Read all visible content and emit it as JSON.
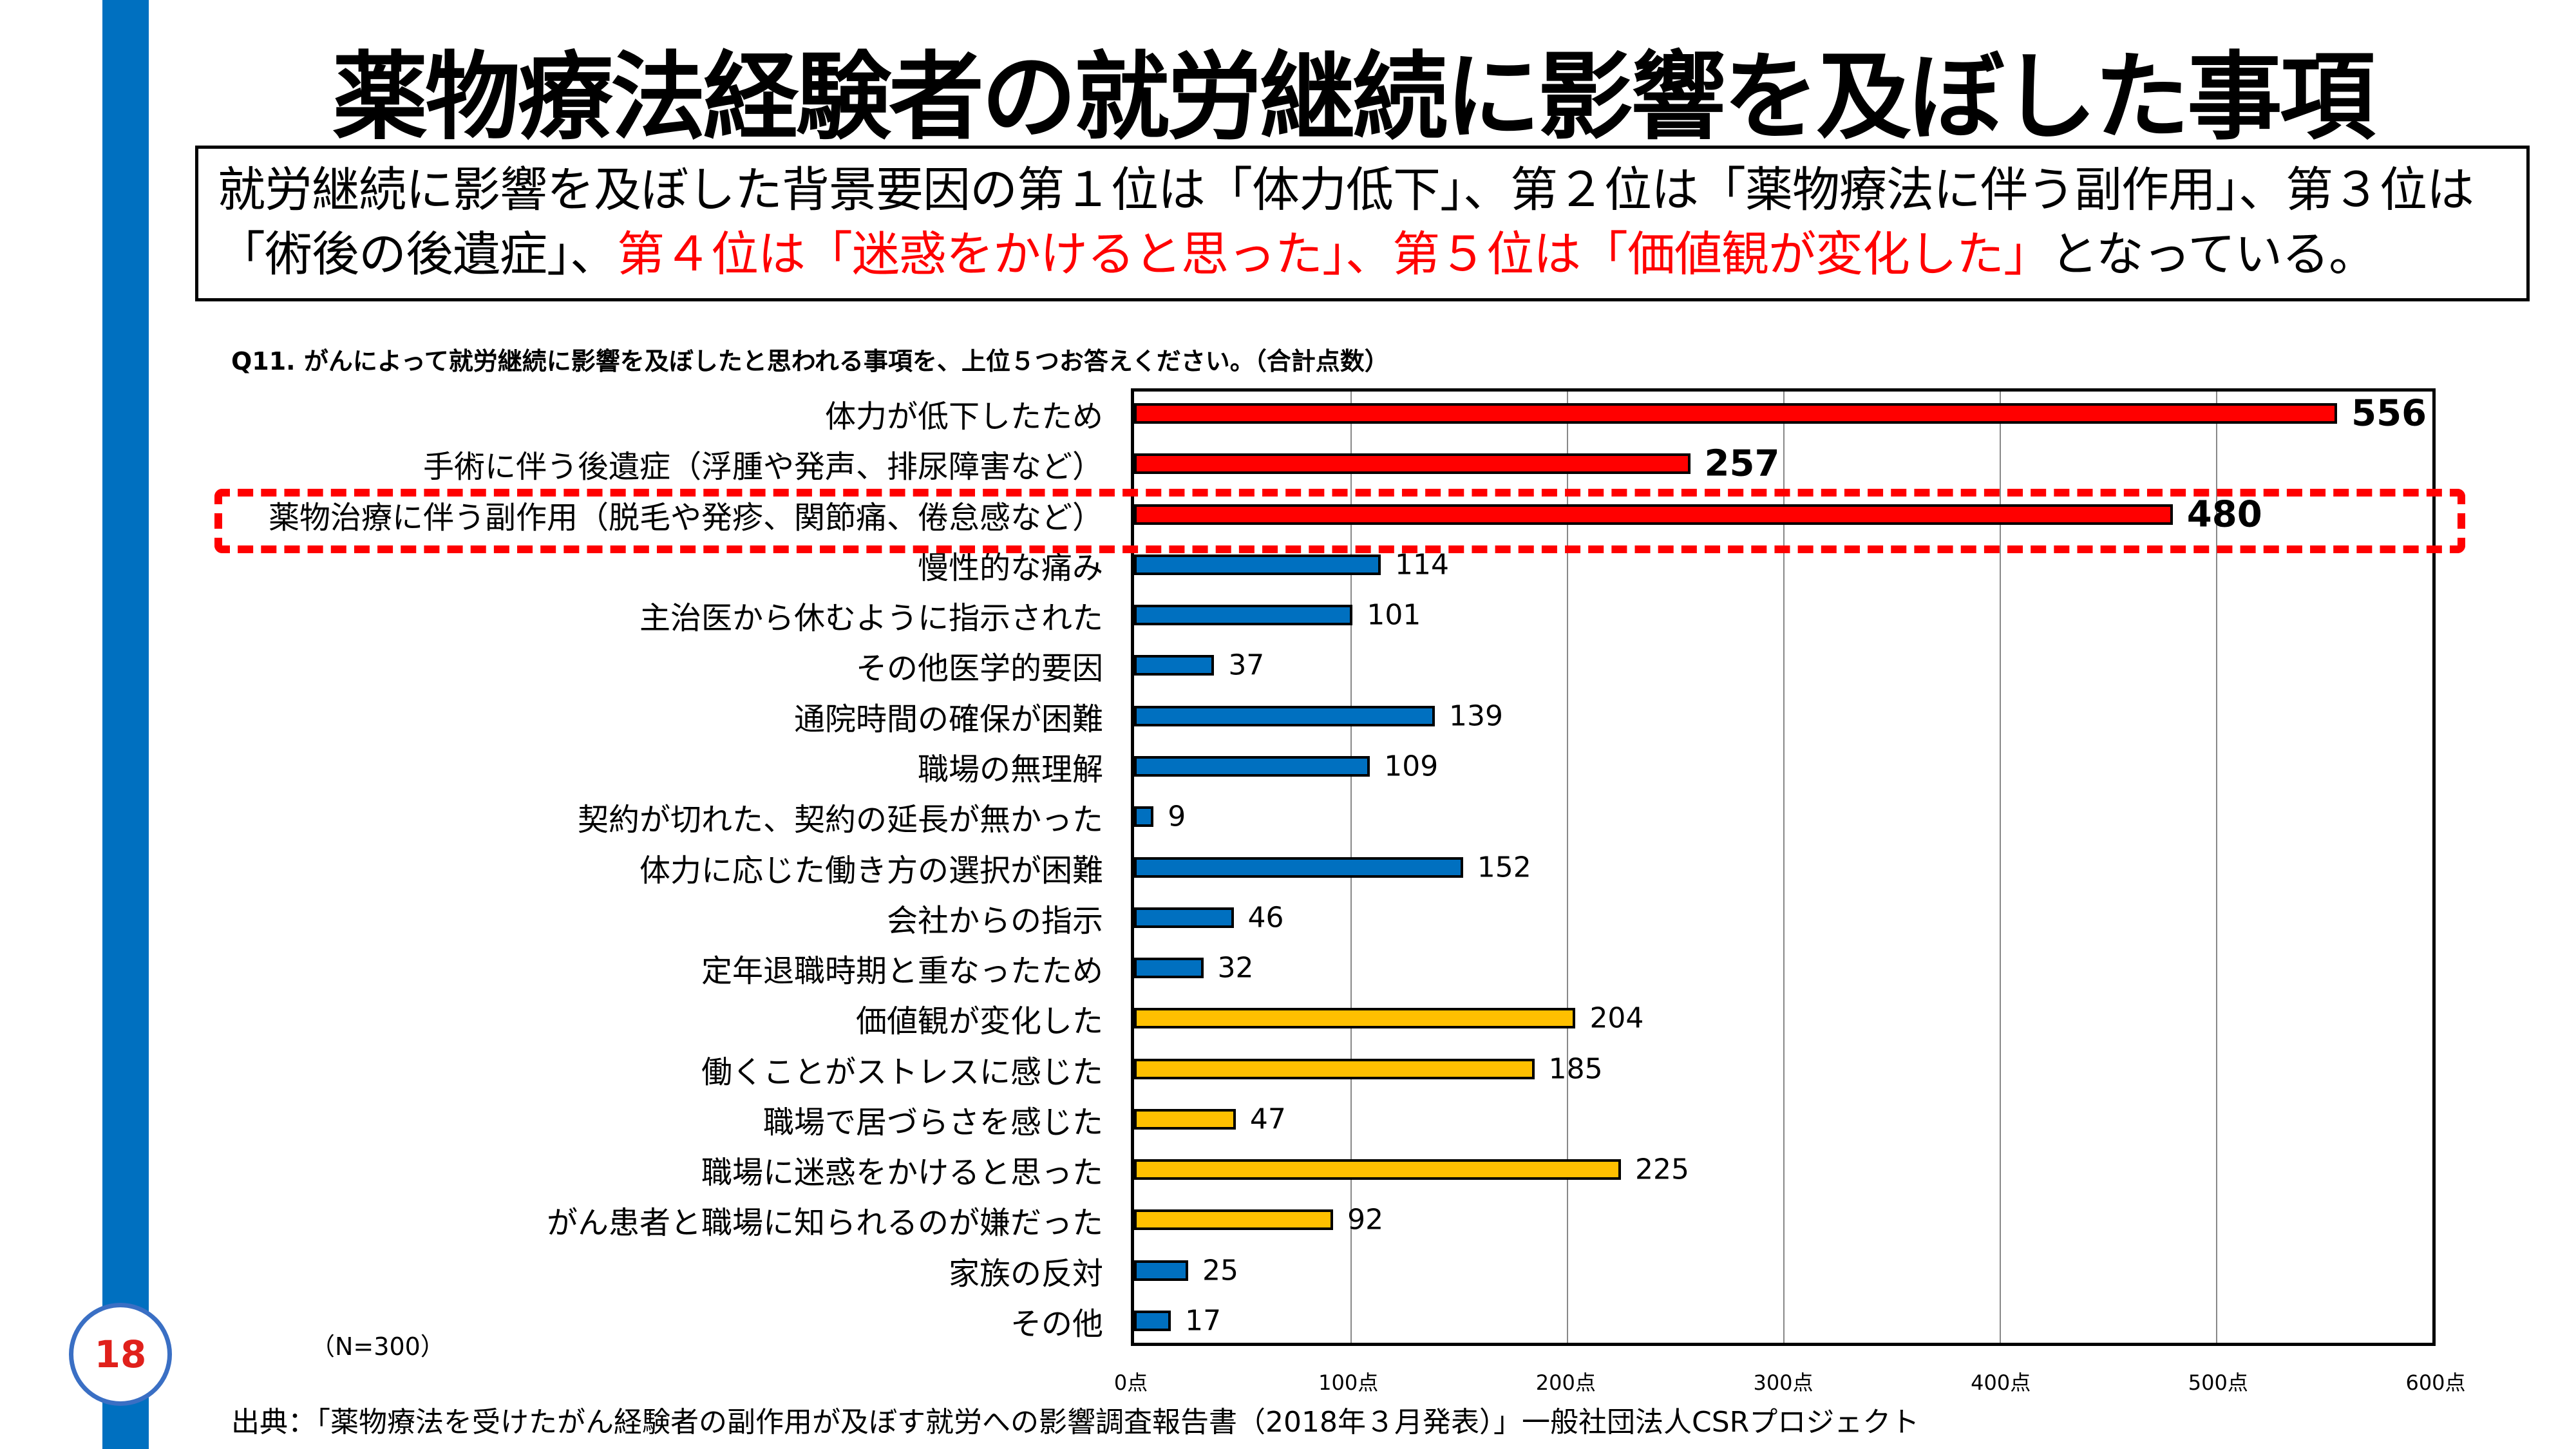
{
  "page_number": "18",
  "title": "薬物療法経験者の就労継続に影響を及ぼした事項",
  "summary": {
    "part1": "就労継続に影響を及ぼした背景要因の第１位は「体力低下」、第２位は「薬物療法に伴う副作用」、第３位は「術後の後遺症」、",
    "part2_red": "第４位は「迷惑をかけると思った」、第５位は「価値観が変化した」",
    "part3": "となっている。"
  },
  "colors": {
    "red": "#ff0000",
    "blue": "#0070c0",
    "yellow": "#ffc000",
    "sidebar": "#0070c0"
  },
  "chart_data": {
    "type": "bar",
    "orientation": "horizontal",
    "title": "Q11. がんによって就労継続に影響を及ぼしたと思われる事項を、上位５つお答えください。（合計点数）",
    "categories": [
      "体力が低下したため",
      "手術に伴う後遺症（浮腫や発声、排尿障害など）",
      "薬物治療に伴う副作用（脱毛や発疹、関節痛、倦怠感など）",
      "慢性的な痛み",
      "主治医から休むように指示された",
      "その他医学的要因",
      "通院時間の確保が困難",
      "職場の無理解",
      "契約が切れた、契約の延長が無かった",
      "体力に応じた働き方の選択が困難",
      "会社からの指示",
      "定年退職時期と重なったため",
      "価値観が変化した",
      "働くことがストレスに感じた",
      "職場で居づらさを感じた",
      "職場に迷惑をかけると思った",
      "がん患者と職場に知られるのが嫌だった",
      "家族の反対",
      "その他"
    ],
    "values": [
      556,
      257,
      480,
      114,
      101,
      37,
      139,
      109,
      9,
      152,
      46,
      32,
      204,
      185,
      47,
      225,
      92,
      25,
      17
    ],
    "bar_colors": [
      "red",
      "red",
      "red",
      "blue",
      "blue",
      "blue",
      "blue",
      "blue",
      "blue",
      "blue",
      "blue",
      "blue",
      "yellow",
      "yellow",
      "yellow",
      "yellow",
      "yellow",
      "blue",
      "blue"
    ],
    "highlighted_category": "薬物治療に伴う副作用（脱毛や発疹、関節痛、倦怠感など）",
    "xlim": [
      0,
      600
    ],
    "xticks": [
      "0点",
      "100点",
      "200点",
      "300点",
      "400点",
      "500点",
      "600点"
    ],
    "grid": true,
    "note": "（N=300）"
  },
  "source": "出典：「薬物療法を受けたがん経験者の副作用が及ぼす就労への影響調査報告書（2018年３月発表）」一般社団法人CSRプロジェクト"
}
